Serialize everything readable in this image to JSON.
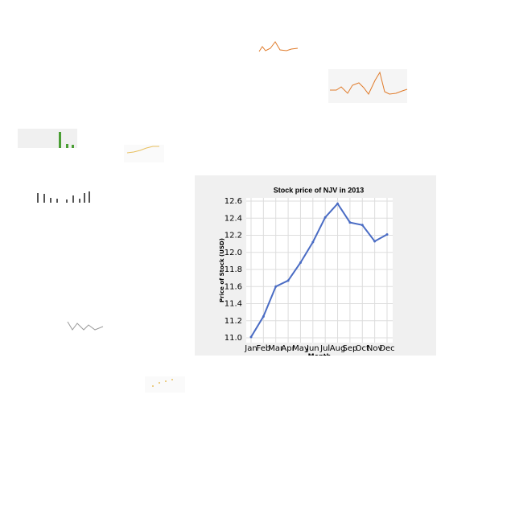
{
  "chart_data": {
    "type": "line",
    "title": "Stock price of NJV in 2013",
    "x_label": "Month",
    "y_label": "Price of Stock (USD)",
    "categories": [
      "Jan",
      "Feb",
      "Mar",
      "Apr",
      "May",
      "Jun",
      "Jul",
      "Aug",
      "Sep",
      "Oct",
      "Nov",
      "Dec"
    ],
    "series": [
      {
        "name": "NJV",
        "color": "#4a6cc4",
        "values": [
          11.01,
          11.25,
          11.6,
          11.67,
          11.88,
          12.12,
          12.41,
          12.57,
          12.35,
          12.32,
          12.13,
          12.21
        ]
      }
    ],
    "ylim": [
      11.0,
      12.6
    ],
    "yticks": [
      {
        "value": 11,
        "label": "11.0"
      },
      11.2,
      11.4,
      11.6,
      11.8,
      {
        "value": 12,
        "label": "12.0"
      },
      12.2,
      12.4,
      12.6
    ],
    "grid": true
  }
}
